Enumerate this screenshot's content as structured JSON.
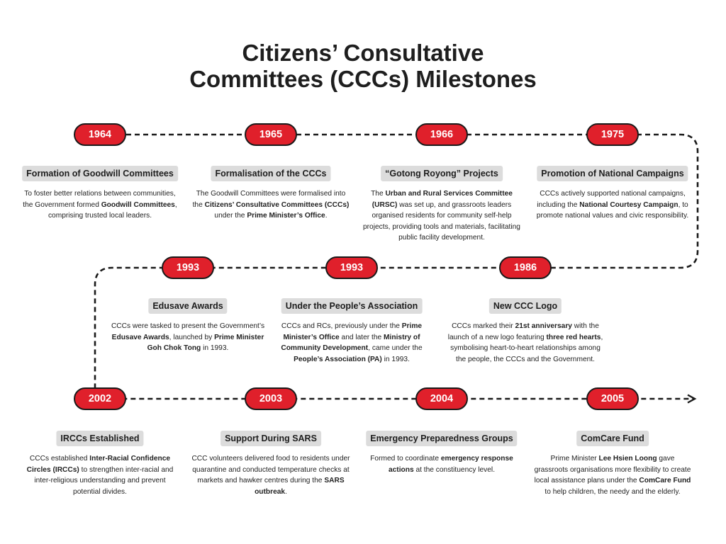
{
  "title": {
    "line1": "Citizens’ Consultative",
    "line2": "Committees (CCCs) Milestones"
  },
  "colors": {
    "pill": "#e0202b",
    "heading_bg": "#dcdcdc",
    "line": "#1a1a1a"
  },
  "milestones": [
    {
      "year": "1964",
      "heading": "Formation of Goodwill Committees",
      "text": [
        "To foster better relations between communities, the Government formed ",
        {
          "b": "Goodwill Committees"
        },
        ", comprising trusted local leaders."
      ]
    },
    {
      "year": "1965",
      "heading": "Formalisation of the CCCs",
      "text": [
        "The Goodwill Committees were formalised into the ",
        {
          "b": "Citizens’ Consultative Committees (CCCs)"
        },
        " under the ",
        {
          "b": "Prime Minister’s Office"
        },
        "."
      ]
    },
    {
      "year": "1966",
      "heading": "“Gotong Royong” Projects",
      "text": [
        "The ",
        {
          "b": "Urban and Rural Services Committee (URSC)"
        },
        " was set up, and grassroots leaders organised residents for community self-help projects, providing tools and materials, facilitating public facility development."
      ]
    },
    {
      "year": "1975",
      "heading": "Promotion of National Campaigns",
      "text": [
        "CCCs actively supported national campaigns, including the ",
        {
          "b": "National Courtesy Campaign"
        },
        ", to promote national values and civic responsibility."
      ]
    },
    {
      "year": "1993",
      "heading": "Edusave Awards",
      "text": [
        "CCCs were tasked to present the Government’s ",
        {
          "b": "Edusave Awards"
        },
        ", launched by ",
        {
          "b": "Prime Minister Goh Chok Tong"
        },
        " in 1993."
      ]
    },
    {
      "year": "1993",
      "heading": "Under the People’s Association",
      "text": [
        "CCCs and RCs, previously under the ",
        {
          "b": "Prime Minister’s Office"
        },
        " and later the ",
        {
          "b": "Ministry of Community Development"
        },
        ", came under the ",
        {
          "b": "People’s Association (PA)"
        },
        " in 1993."
      ]
    },
    {
      "year": "1986",
      "heading": "New CCC Logo",
      "text": [
        "CCCs marked their ",
        {
          "b": "21st anniversary"
        },
        " with the launch of a new logo featuring ",
        {
          "b": "three red hearts"
        },
        ", symbolising heart-to-heart relationships among the people, the CCCs and the Government."
      ]
    },
    {
      "year": "2002",
      "heading": "IRCCs Established",
      "text": [
        "CCCs established ",
        {
          "b": "Inter-Racial Confidence Circles (IRCCs)"
        },
        " to strengthen inter-racial and inter-religious understanding and prevent potential divides."
      ]
    },
    {
      "year": "2003",
      "heading": "Support During SARS",
      "text": [
        "CCC volunteers delivered food to residents under quarantine and conducted temperature checks at markets and hawker centres during the ",
        {
          "b": "SARS outbreak"
        },
        "."
      ]
    },
    {
      "year": "2004",
      "heading": "Emergency Preparedness Groups",
      "text": [
        "Formed to coordinate ",
        {
          "b": "emergency response actions"
        },
        " at the constituency level."
      ]
    },
    {
      "year": "2005",
      "heading": "ComCare Fund",
      "text": [
        "Prime Minister ",
        {
          "b": "Lee Hsien Loong"
        },
        " gave grassroots organisations more flexibility to create local assistance plans under the ",
        {
          "b": "ComCare Fund"
        },
        " to help children, the needy and the elderly."
      ]
    }
  ]
}
